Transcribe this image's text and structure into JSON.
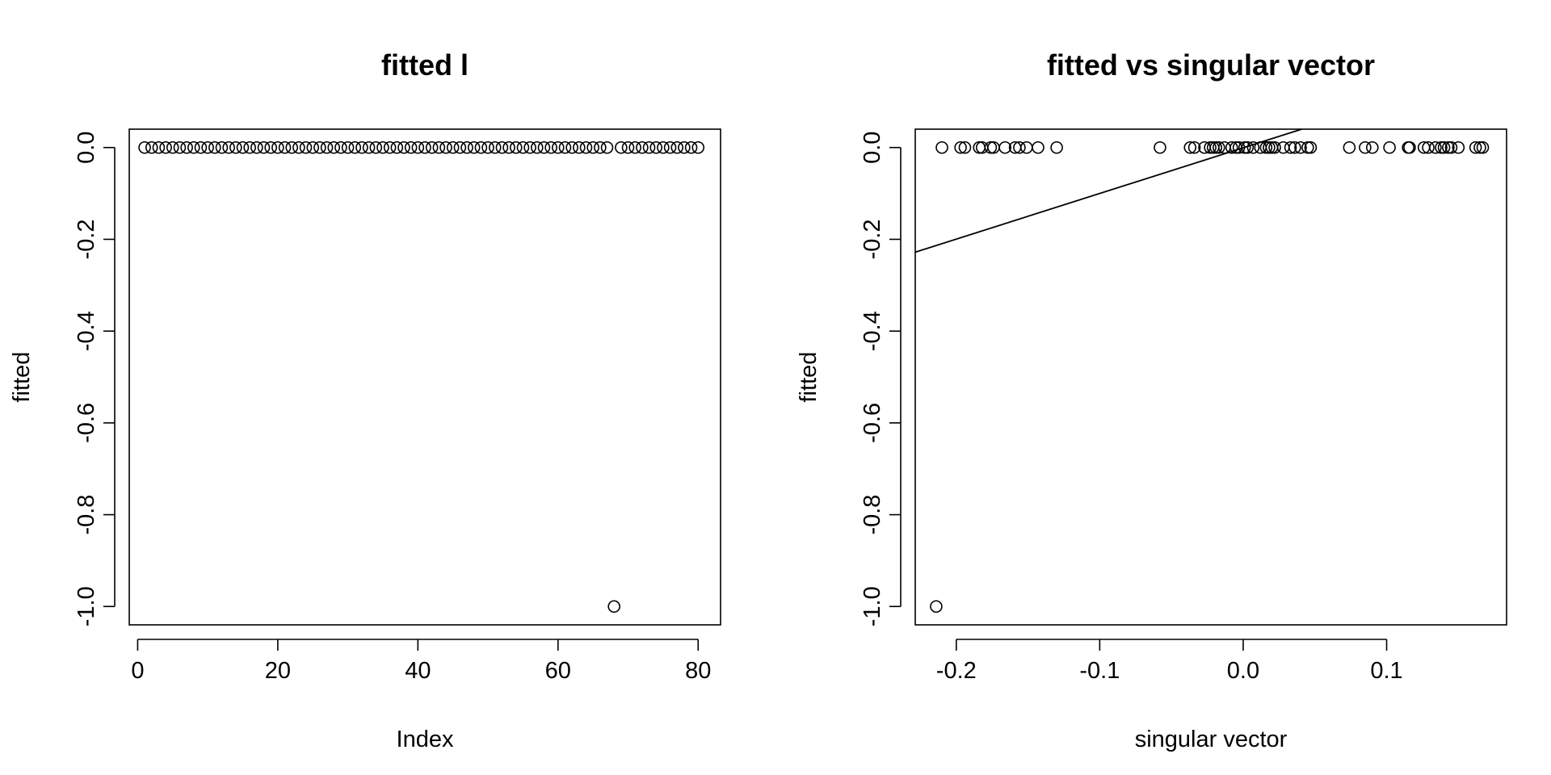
{
  "chart_data": [
    {
      "type": "scatter",
      "title": "fitted l",
      "xlabel": "Index",
      "ylabel": "fitted",
      "xlim": [
        -1.2,
        83.2
      ],
      "ylim": [
        -1.04,
        0.04
      ],
      "xticks": [
        0,
        20,
        40,
        60,
        80
      ],
      "xtick_labels": [
        "0",
        "20",
        "40",
        "60",
        "80"
      ],
      "yticks": [
        0.0,
        -0.2,
        -0.4,
        -0.6,
        -0.8,
        -1.0
      ],
      "ytick_labels": [
        "0.0",
        "-0.2",
        "-0.4",
        "-0.6",
        "-0.8",
        "-1.0"
      ],
      "grid": false,
      "legend": "none",
      "series": [
        {
          "x": [
            1,
            2,
            3,
            4,
            5,
            6,
            7,
            8,
            9,
            10,
            11,
            12,
            13,
            14,
            15,
            16,
            17,
            18,
            19,
            20,
            21,
            22,
            23,
            24,
            25,
            26,
            27,
            28,
            29,
            30,
            31,
            32,
            33,
            34,
            35,
            36,
            37,
            38,
            39,
            40,
            41,
            42,
            43,
            44,
            45,
            46,
            47,
            48,
            49,
            50,
            51,
            52,
            53,
            54,
            55,
            56,
            57,
            58,
            59,
            60,
            61,
            62,
            63,
            64,
            65,
            66,
            67,
            68,
            69,
            70,
            71,
            72,
            73,
            74,
            75,
            76,
            77,
            78,
            79,
            80
          ],
          "y": [
            0,
            0,
            0,
            0,
            0,
            0,
            0,
            0,
            0,
            0,
            0,
            0,
            0,
            0,
            0,
            0,
            0,
            0,
            0,
            0,
            0,
            0,
            0,
            0,
            0,
            0,
            0,
            0,
            0,
            0,
            0,
            0,
            0,
            0,
            0,
            0,
            0,
            0,
            0,
            0,
            0,
            0,
            0,
            0,
            0,
            0,
            0,
            0,
            0,
            0,
            0,
            0,
            0,
            0,
            0,
            0,
            0,
            0,
            0,
            0,
            0,
            0,
            0,
            0,
            0,
            0,
            0,
            -1,
            0,
            0,
            0,
            0,
            0,
            0,
            0,
            0,
            0,
            0,
            0,
            0
          ]
        }
      ]
    },
    {
      "type": "scatter",
      "title": "fitted vs singular vector",
      "xlabel": "singular vector",
      "ylabel": "fitted",
      "xlim": [
        -0.2286,
        0.1836
      ],
      "ylim": [
        -1.04,
        0.04
      ],
      "xticks": [
        -0.2,
        -0.1,
        0.0,
        0.1
      ],
      "xtick_labels": [
        "-0.2",
        "-0.1",
        "0.0",
        "0.1"
      ],
      "yticks": [
        0.0,
        -0.2,
        -0.4,
        -0.6,
        -0.8,
        -1.0
      ],
      "ytick_labels": [
        "0.0",
        "-0.2",
        "-0.4",
        "-0.6",
        "-0.8",
        "-1.0"
      ],
      "grid": false,
      "legend": "none",
      "series": [
        {
          "x": [
            -0.214,
            -0.21,
            -0.197,
            -0.194,
            -0.184,
            -0.182,
            -0.176,
            -0.174,
            -0.166,
            -0.159,
            -0.156,
            -0.151,
            -0.143,
            -0.13,
            -0.058,
            -0.037,
            -0.034,
            -0.027,
            -0.023,
            -0.021,
            -0.019,
            -0.017,
            -0.013,
            -0.008,
            -0.005,
            -0.003,
            0.001,
            0.003,
            0.007,
            0.012,
            0.016,
            0.018,
            0.02,
            0.022,
            0.028,
            0.033,
            0.036,
            0.04,
            0.045,
            0.047,
            0.074,
            0.085,
            0.09,
            0.102,
            0.115,
            0.116,
            0.126,
            0.129,
            0.134,
            0.138,
            0.14,
            0.143,
            0.145,
            0.15,
            0.162,
            0.165,
            0.167
          ],
          "y": [
            -1,
            0,
            0,
            0,
            0,
            0,
            0,
            0,
            0,
            0,
            0,
            0,
            0,
            0,
            0,
            0,
            0,
            0,
            0,
            0,
            0,
            0,
            0,
            0,
            0,
            0,
            0,
            0,
            0,
            0,
            0,
            0,
            0,
            0,
            0,
            0,
            0,
            0,
            0,
            0,
            0,
            0,
            0,
            0,
            0,
            0,
            0,
            0,
            0,
            0,
            0,
            0,
            0,
            0,
            0,
            0,
            0
          ]
        }
      ],
      "fit_line": {
        "x": [
          -0.2286,
          0.0408
        ],
        "y": [
          -0.228,
          0.04
        ]
      }
    }
  ]
}
